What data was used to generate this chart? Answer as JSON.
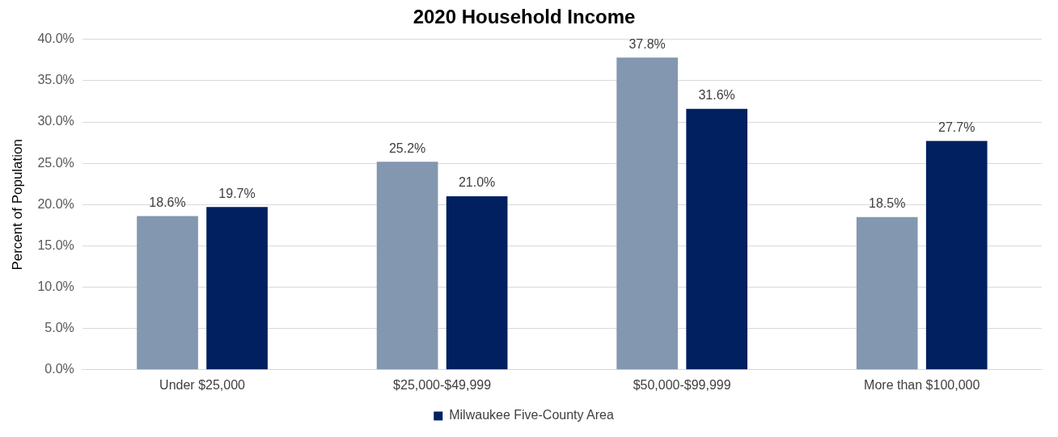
{
  "chart_data": {
    "type": "bar",
    "title": "2020 Household Income",
    "ylabel": "Percent of Population",
    "categories": [
      "Under $25,000",
      "$25,000-$49,999",
      "$50,000-$99,999",
      "More than $100,000"
    ],
    "series": [
      {
        "color": "#8497b0",
        "values": [
          18.6,
          25.2,
          37.8,
          18.5
        ],
        "value_labels": [
          "18.6%",
          "25.2%",
          "37.8%",
          "18.5%"
        ]
      },
      {
        "name": "Milwaukee Five-County Area",
        "color": "#002060",
        "values": [
          19.7,
          21.0,
          31.6,
          27.7
        ],
        "value_labels": [
          "19.7%",
          "21.0%",
          "31.6%",
          "27.7%"
        ]
      }
    ],
    "ylim": [
      0,
      40
    ],
    "yticks": [
      {
        "value": 0,
        "label": "0.0%"
      },
      {
        "value": 5,
        "label": "5.0%"
      },
      {
        "value": 10,
        "label": "10.0%"
      },
      {
        "value": 15,
        "label": "15.0%"
      },
      {
        "value": 20,
        "label": "20.0%"
      },
      {
        "value": 25,
        "label": "25.0%"
      },
      {
        "value": 30,
        "label": "30.0%"
      },
      {
        "value": 35,
        "label": "35.0%"
      },
      {
        "value": 40,
        "label": "40.0%"
      }
    ],
    "grid": "y",
    "legend": "bottom"
  }
}
